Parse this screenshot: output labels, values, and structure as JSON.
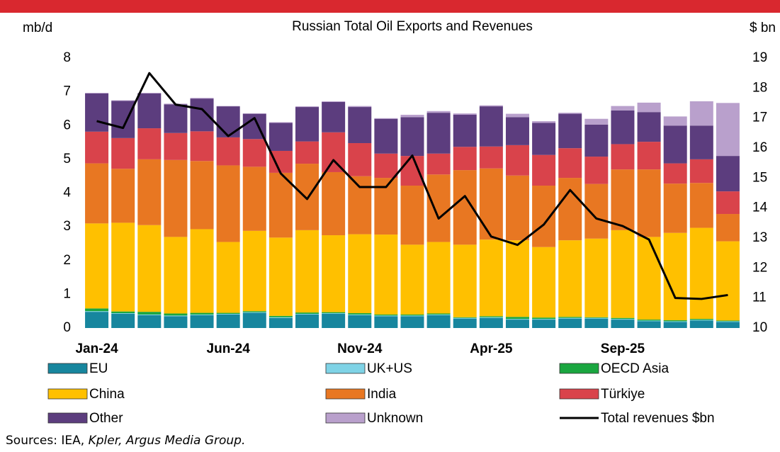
{
  "chart_data": {
    "type": "bar",
    "title": "Russian Total Oil Exports and Revenues",
    "y_label": "mb/d",
    "y2_label": "$ bn",
    "source": {
      "prefix": "Sources: IEA,",
      "italic": "Kpler, Argus Media Group."
    },
    "categories": [
      "Jan-24",
      null,
      null,
      null,
      null,
      "Jun-24",
      null,
      null,
      null,
      null,
      "Nov-24",
      null,
      null,
      null,
      null,
      "Apr-25",
      null,
      null,
      null,
      null,
      "Sep-25",
      null,
      null,
      null,
      null
    ],
    "ylim": [
      0,
      8
    ],
    "yticks": [
      0,
      1,
      2,
      3,
      4,
      5,
      6,
      7,
      8
    ],
    "y2lim": [
      10,
      19
    ],
    "y2ticks": [
      10,
      11,
      12,
      13,
      14,
      15,
      16,
      17,
      18,
      19
    ],
    "series": [
      {
        "name": "EU",
        "color": "#17869e",
        "values": [
          0.48,
          0.42,
          0.38,
          0.35,
          0.38,
          0.4,
          0.45,
          0.3,
          0.4,
          0.42,
          0.38,
          0.35,
          0.35,
          0.38,
          0.28,
          0.3,
          0.25,
          0.25,
          0.28,
          0.28,
          0.25,
          0.2,
          0.18,
          0.22,
          0.18
        ]
      },
      {
        "name": "UK+US",
        "color": "#7fd3e6",
        "values": [
          0.02,
          0.02,
          0.02,
          0.02,
          0.02,
          0.02,
          0.02,
          0.02,
          0.02,
          0.02,
          0.02,
          0.02,
          0.02,
          0.02,
          0.02,
          0.02,
          0.02,
          0.02,
          0.02,
          0.02,
          0.02,
          0.02,
          0.02,
          0.02,
          0.02
        ]
      },
      {
        "name": "OECD Asia",
        "color": "#1aa640",
        "values": [
          0.08,
          0.05,
          0.08,
          0.06,
          0.05,
          0.03,
          0.03,
          0.04,
          0.04,
          0.03,
          0.04,
          0.03,
          0.03,
          0.03,
          0.02,
          0.03,
          0.06,
          0.04,
          0.03,
          0.02,
          0.03,
          0.03,
          0.03,
          0.03,
          0.02
        ]
      },
      {
        "name": "China",
        "color": "#ffc000",
        "values": [
          2.52,
          2.63,
          2.57,
          2.27,
          2.48,
          2.1,
          2.38,
          2.32,
          2.44,
          2.28,
          2.34,
          2.37,
          2.07,
          2.12,
          2.15,
          2.27,
          2.27,
          2.09,
          2.27,
          2.33,
          2.6,
          2.45,
          2.59,
          2.7,
          2.35
        ]
      },
      {
        "name": "India",
        "color": "#e87722",
        "values": [
          1.78,
          1.6,
          1.95,
          2.28,
          2.02,
          2.27,
          1.9,
          1.92,
          1.97,
          1.87,
          1.72,
          1.68,
          1.75,
          2.0,
          2.21,
          2.11,
          1.92,
          1.82,
          1.85,
          1.62,
          1.8,
          2.0,
          1.46,
          1.33,
          0.81
        ]
      },
      {
        "name": "Türkiye",
        "color": "#d9434b",
        "values": [
          0.94,
          0.91,
          0.92,
          0.8,
          0.88,
          0.83,
          0.82,
          0.65,
          0.66,
          1.18,
          0.98,
          0.72,
          0.88,
          0.62,
          0.69,
          0.65,
          0.9,
          0.91,
          0.88,
          0.81,
          0.75,
          0.82,
          0.6,
          0.7,
          0.67
        ]
      },
      {
        "name": "Other",
        "color": "#5c3d7e",
        "values": [
          1.13,
          1.1,
          1.03,
          0.85,
          0.97,
          0.92,
          0.75,
          0.83,
          1.02,
          0.9,
          1.07,
          1.03,
          1.15,
          1.21,
          0.95,
          1.19,
          0.83,
          0.95,
          1.02,
          0.95,
          1.0,
          0.88,
          1.12,
          1.0,
          1.05
        ]
      },
      {
        "name": "Unknown",
        "color": "#b9a0cc",
        "values": [
          0.02,
          0.02,
          0.02,
          0.02,
          0.02,
          0.01,
          0.01,
          0.02,
          0.02,
          0.02,
          0.03,
          0.02,
          0.07,
          0.05,
          0.04,
          0.03,
          0.1,
          0.05,
          0.03,
          0.17,
          0.13,
          0.28,
          0.27,
          0.72,
          1.57
        ]
      },
      {
        "name": "Total revenues $bn",
        "color": "#000000",
        "type": "line",
        "axis": "y2",
        "values": [
          16.9,
          16.67,
          18.5,
          17.45,
          17.3,
          16.4,
          17.0,
          15.15,
          14.3,
          15.6,
          14.7,
          14.7,
          15.75,
          13.65,
          14.4,
          13.05,
          12.77,
          13.45,
          14.6,
          13.65,
          13.4,
          12.95,
          11.0,
          10.97,
          11.1
        ]
      }
    ]
  }
}
